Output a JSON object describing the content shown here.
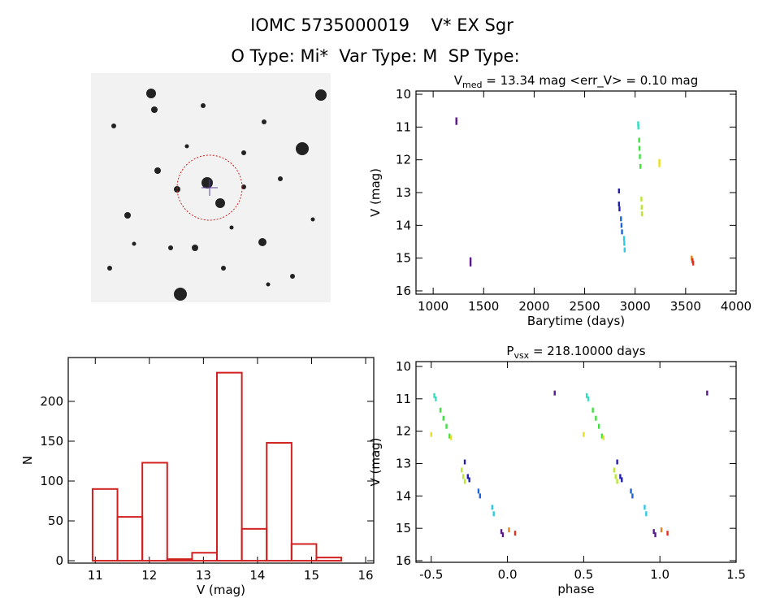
{
  "header": {
    "title": "IOMC 5735000019    V* EX Sgr",
    "subtitle": "O Type: Mi*  Var Type: M  SP Type:"
  },
  "chart_data": [
    {
      "type": "scatter",
      "title": [
        "V",
        "med",
        " = 13.34 mag <err_V> = 0.10 mag"
      ],
      "x_label": "Barytime (days)",
      "y_label": "V (mag)",
      "xlim": [
        830,
        4000
      ],
      "ylim": [
        16.1,
        9.9
      ],
      "xticks": [
        1000,
        1500,
        2000,
        2500,
        3000,
        3500,
        4000
      ],
      "yticks": [
        10,
        11,
        12,
        13,
        14,
        15,
        16
      ],
      "x": [
        1230,
        1230,
        1370,
        1370,
        2840,
        2840,
        2845,
        2860,
        2865,
        2870,
        2890,
        2893,
        2896,
        3030,
        3032,
        3040,
        3043,
        3047,
        3052,
        3062,
        3065,
        3067,
        3240,
        3240,
        3560,
        3568,
        3575
      ],
      "values": [
        10.78,
        10.86,
        15.05,
        15.18,
        12.95,
        13.35,
        13.5,
        13.8,
        14.0,
        14.2,
        14.4,
        14.55,
        14.75,
        10.9,
        11.0,
        11.4,
        11.65,
        11.9,
        12.2,
        13.2,
        13.45,
        13.65,
        12.05,
        12.15,
        15.0,
        15.08,
        15.15
      ],
      "colors": [
        "#5a1a8c",
        "#5a1a8c",
        "#5a1a8c",
        "#5a1a8c",
        "#2020b0",
        "#2020b0",
        "#2020b0",
        "#1e64d2",
        "#1e64d2",
        "#1e64d2",
        "#30c8e8",
        "#30c8e8",
        "#30c8e8",
        "#30e0c0",
        "#30e0c0",
        "#40e040",
        "#40e040",
        "#40e040",
        "#40e040",
        "#b8e830",
        "#b8e830",
        "#b8e830",
        "#e8e020",
        "#e8e020",
        "#e08020",
        "#e03020",
        "#e03020"
      ]
    },
    {
      "type": "histogram",
      "x_label": "V (mag)",
      "y_label": "N",
      "color": "#d02020",
      "xlim": [
        10.5,
        16.15
      ],
      "ylim": [
        -3,
        255
      ],
      "xticks": [
        11,
        12,
        13,
        14,
        15,
        16
      ],
      "yticks": [
        0,
        50,
        100,
        150,
        200
      ],
      "bins": [
        10.95,
        11.41,
        11.87,
        12.33,
        12.79,
        13.25,
        13.71,
        14.17,
        14.63,
        15.09,
        15.55
      ],
      "counts": [
        90,
        55,
        123,
        2,
        10,
        236,
        40,
        148,
        21,
        4
      ]
    },
    {
      "type": "scatter",
      "title": [
        "P",
        "vsx",
        " = 218.10000 days"
      ],
      "x_label": "phase",
      "y_label": "V (mag)",
      "xlim": [
        -0.6,
        1.5
      ],
      "ylim": [
        16.05,
        9.85
      ],
      "xticks": [
        -0.5,
        {
          "value": 0,
          "label": "0.0"
        },
        0.5,
        {
          "value": 1,
          "label": "1.0"
        },
        1.5
      ],
      "yticks": [
        10,
        11,
        12,
        13,
        14,
        15,
        16
      ],
      "x": [
        -0.48,
        -0.47,
        -0.44,
        -0.42,
        -0.4,
        -0.38,
        -0.5,
        -0.37,
        -0.3,
        -0.29,
        -0.28,
        -0.28,
        -0.26,
        -0.25,
        -0.19,
        -0.18,
        -0.1,
        -0.09,
        -0.04,
        -0.03,
        0.01,
        0.05,
        0.31,
        0.52,
        0.53,
        0.56,
        0.58,
        0.6,
        0.62,
        0.5,
        0.63,
        0.7,
        0.71,
        0.72,
        0.72,
        0.74,
        0.75,
        0.81,
        0.82,
        0.9,
        0.91,
        0.96,
        0.97,
        1.01,
        1.05,
        1.31
      ],
      "values": [
        10.9,
        11.0,
        11.35,
        11.6,
        11.85,
        12.15,
        12.1,
        12.2,
        13.2,
        13.4,
        13.55,
        12.95,
        13.4,
        13.5,
        13.85,
        14.0,
        14.35,
        14.55,
        15.1,
        15.2,
        15.05,
        15.15,
        10.82,
        10.9,
        11.0,
        11.35,
        11.6,
        11.85,
        12.15,
        12.1,
        12.2,
        13.2,
        13.4,
        13.55,
        12.95,
        13.4,
        13.5,
        13.85,
        14.0,
        14.35,
        14.55,
        15.1,
        15.2,
        15.05,
        15.15,
        10.82
      ],
      "colors": [
        "#30e0c0",
        "#30e0c0",
        "#40e040",
        "#40e040",
        "#40e040",
        "#40e040",
        "#e8e020",
        "#e8e020",
        "#b8e830",
        "#b8e830",
        "#b8e830",
        "#2020b0",
        "#2020b0",
        "#2020b0",
        "#1e64d2",
        "#1e64d2",
        "#30c8e8",
        "#30c8e8",
        "#5a1a8c",
        "#5a1a8c",
        "#e08020",
        "#e03020",
        "#5a1a8c",
        "#30e0c0",
        "#30e0c0",
        "#40e040",
        "#40e040",
        "#40e040",
        "#40e040",
        "#e8e020",
        "#e8e020",
        "#b8e830",
        "#b8e830",
        "#b8e830",
        "#2020b0",
        "#2020b0",
        "#2020b0",
        "#1e64d2",
        "#1e64d2",
        "#30c8e8",
        "#30c8e8",
        "#5a1a8c",
        "#5a1a8c",
        "#e08020",
        "#e03020",
        "#5a1a8c"
      ]
    }
  ]
}
